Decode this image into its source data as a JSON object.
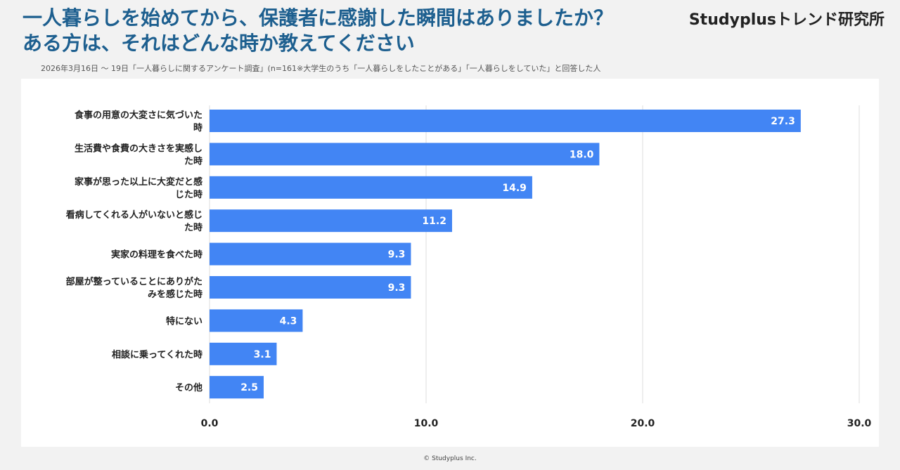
{
  "header": {
    "title_line1": "一人暮らしを始めてから、保護者に感謝した瞬間はありましたか？",
    "title_line2": "ある方は、それはどんな時か教えてください",
    "brand": "Studyplusトレンド研究所",
    "survey_note": "2026年3月16日 〜 19日「一人暮らしに関するアンケート調査」(n=161※大学生のうち「一人暮らしをしたことがある」「一人暮らしをしていた」と回答した人"
  },
  "footer": {
    "copyright": "© Studyplus Inc."
  },
  "colors": {
    "bar": "#4285f4",
    "title": "#1d5f8f",
    "grid": "#dddddd"
  },
  "chart_data": {
    "type": "bar",
    "orientation": "horizontal",
    "categories": [
      [
        "食事の用意の大変さに気づいた",
        "時"
      ],
      [
        "生活費や食費の大きさを実感し",
        "た時"
      ],
      [
        "家事が思った以上に大変だと感",
        "じた時"
      ],
      [
        "看病してくれる人がいないと感じ",
        "た時"
      ],
      [
        "実家の料理を食べた時"
      ],
      [
        "部屋が整っていることにありがた",
        "みを感じた時"
      ],
      [
        "特にない"
      ],
      [
        "相談に乗ってくれた時"
      ],
      [
        "その他"
      ]
    ],
    "values": [
      27.3,
      18.0,
      14.9,
      11.2,
      9.3,
      9.3,
      4.3,
      3.1,
      2.5
    ],
    "value_labels": [
      "27.3",
      "18.0",
      "14.9",
      "11.2",
      "9.3",
      "9.3",
      "4.3",
      "3.1",
      "2.5"
    ],
    "xlim": [
      0,
      30
    ],
    "xticks": [
      0,
      10,
      20,
      30
    ],
    "xtick_labels": [
      "0.0",
      "10.0",
      "20.0",
      "30.0"
    ],
    "grid": true,
    "legend": false
  }
}
